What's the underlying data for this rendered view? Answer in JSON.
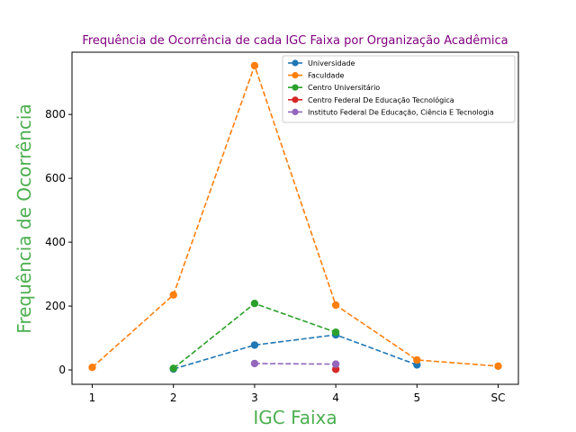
{
  "chart_data": {
    "type": "line",
    "title": "Frequência de Ocorrência de cada IGC Faixa por Organização Acadêmica",
    "xlabel": "IGC Faixa",
    "ylabel": "Frequência de Ocorrência",
    "categories": [
      "1",
      "2",
      "3",
      "4",
      "5",
      "SC"
    ],
    "ylim": [
      -45,
      995
    ],
    "yticks": [
      0,
      200,
      400,
      600,
      800
    ],
    "grid": false,
    "legend_position": "top-right",
    "colors": {
      "title": "#800080",
      "axis_label": "#4caf50"
    },
    "series": [
      {
        "name": "Universidade",
        "color": "#1f77b4",
        "points": [
          [
            "2",
            3
          ],
          [
            "3",
            78
          ],
          [
            "4",
            110
          ],
          [
            "5",
            16
          ]
        ]
      },
      {
        "name": "Faculdade",
        "color": "#ff7f0e",
        "points": [
          [
            "1",
            8
          ],
          [
            "2",
            235
          ],
          [
            "3",
            953
          ],
          [
            "4",
            203
          ],
          [
            "5",
            31
          ],
          [
            "SC",
            12
          ]
        ]
      },
      {
        "name": "Centro Universitário",
        "color": "#2ca02c",
        "points": [
          [
            "2",
            5
          ],
          [
            "3",
            208
          ],
          [
            "4",
            118
          ]
        ]
      },
      {
        "name": "Centro Federal De Educação Tecnológica",
        "color": "#d62728",
        "points": [
          [
            "4",
            2
          ]
        ]
      },
      {
        "name": "Instituto Federal De Educação, Ciência E Tecnologia",
        "color": "#9467bd",
        "points": [
          [
            "3",
            20
          ],
          [
            "4",
            18
          ]
        ]
      }
    ]
  }
}
